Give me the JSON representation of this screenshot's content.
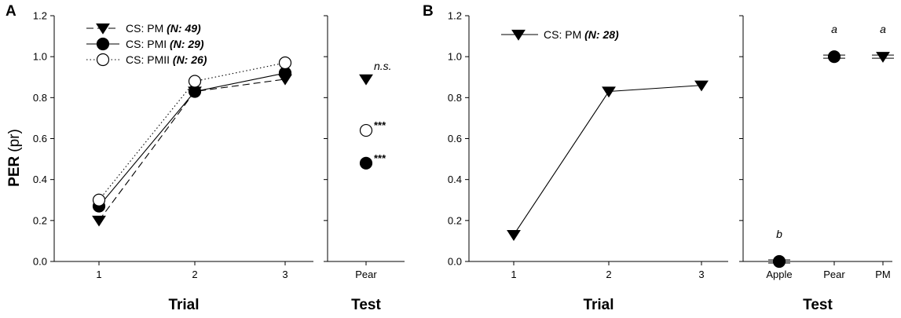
{
  "figure": {
    "panel_letters": [
      "A",
      "B"
    ],
    "ylabel_bold": "PER",
    "ylabel_plain": "(pr)"
  },
  "chart_data": [
    {
      "type": "line",
      "panel": "A",
      "subplot": "trial",
      "xlabel": "Trial",
      "ylabel": "PER (pr)",
      "x": [
        1,
        2,
        3
      ],
      "xticks": [
        "1",
        "2",
        "3"
      ],
      "ylim": [
        0,
        1.2
      ],
      "yticks": [
        "0.0",
        "0.2",
        "0.4",
        "0.6",
        "0.8",
        "1.0",
        "1.2"
      ],
      "legend_position": "top-left",
      "series": [
        {
          "name": "CS: PM",
          "n_label": "(N: 49)",
          "marker": "triangle-down",
          "fill": "#000000",
          "dash": "dashed",
          "values": [
            0.2,
            0.83,
            0.89
          ]
        },
        {
          "name": "CS: PMI",
          "n_label": "(N: 29)",
          "marker": "circle",
          "fill": "#000000",
          "dash": "solid",
          "values": [
            0.27,
            0.83,
            0.92
          ]
        },
        {
          "name": "CS: PMII",
          "n_label": "(N: 26)",
          "marker": "circle",
          "fill": "#ffffff",
          "dash": "dotted",
          "values": [
            0.3,
            0.88,
            0.97
          ]
        }
      ]
    },
    {
      "type": "scatter",
      "panel": "A",
      "subplot": "test",
      "xlabel": "Test",
      "categories": [
        "Pear"
      ],
      "ylim": [
        0,
        1.2
      ],
      "points": [
        {
          "series": "CS: PM",
          "category": "Pear",
          "value": 0.89,
          "marker": "triangle-down",
          "fill": "#000000",
          "label": "n.s.",
          "label_style": "italic"
        },
        {
          "series": "CS: PMII",
          "category": "Pear",
          "value": 0.64,
          "marker": "circle",
          "fill": "#ffffff",
          "label": "***",
          "label_style": "star"
        },
        {
          "series": "CS: PMI",
          "category": "Pear",
          "value": 0.48,
          "marker": "circle",
          "fill": "#000000",
          "label": "***",
          "label_style": "star"
        }
      ]
    },
    {
      "type": "line",
      "panel": "B",
      "subplot": "trial",
      "xlabel": "Trial",
      "x": [
        1,
        2,
        3
      ],
      "xticks": [
        "1",
        "2",
        "3"
      ],
      "ylim": [
        0,
        1.2
      ],
      "yticks": [
        "0.0",
        "0.2",
        "0.4",
        "0.6",
        "0.8",
        "1.0",
        "1.2"
      ],
      "legend_position": "top-left",
      "series": [
        {
          "name": "CS: PM",
          "n_label": "(N: 28)",
          "marker": "triangle-down",
          "fill": "#000000",
          "dash": "solid",
          "values": [
            0.13,
            0.83,
            0.86
          ]
        }
      ]
    },
    {
      "type": "scatter",
      "panel": "B",
      "subplot": "test",
      "xlabel": "Test",
      "categories": [
        "Apple",
        "Pear",
        "PM"
      ],
      "ylim": [
        0,
        1.2
      ],
      "points": [
        {
          "category": "Apple",
          "value": 0.0,
          "marker": "circle",
          "fill": "#000000",
          "label": "b",
          "label_style": "italic"
        },
        {
          "category": "Pear",
          "value": 1.0,
          "marker": "circle",
          "fill": "#000000",
          "label": "a",
          "label_style": "italic"
        },
        {
          "category": "PM",
          "value": 1.0,
          "marker": "triangle-down",
          "fill": "#000000",
          "label": "a",
          "label_style": "italic"
        }
      ]
    }
  ]
}
